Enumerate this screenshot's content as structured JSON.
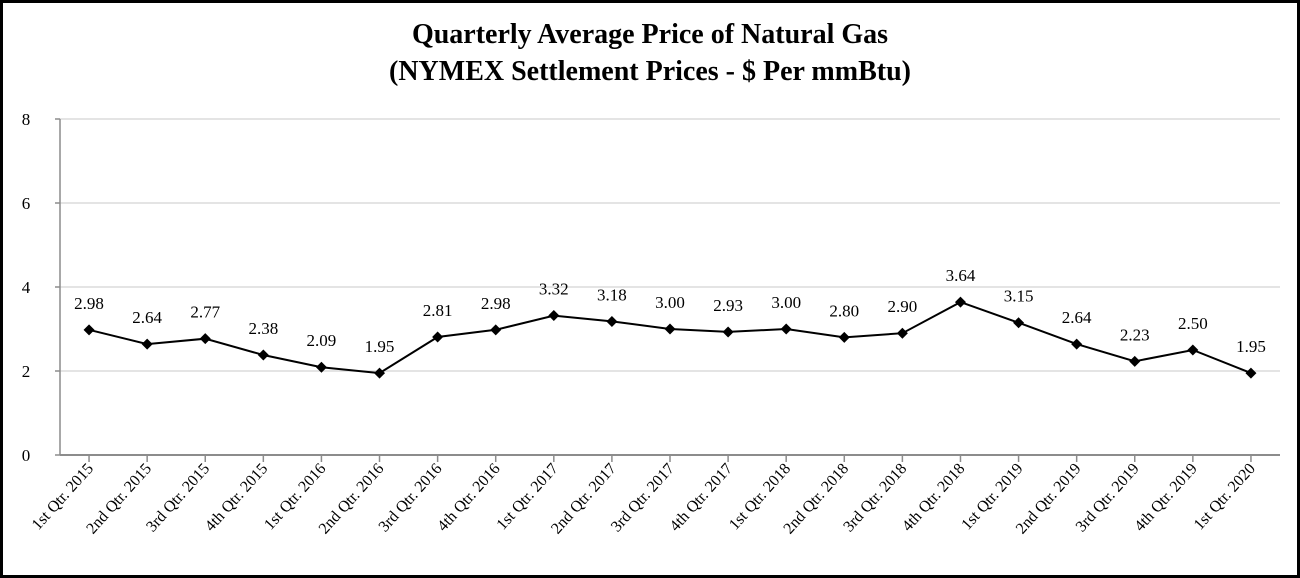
{
  "chart_data": {
    "type": "line",
    "title": [
      "Quarterly Average Price of Natural Gas",
      "(NYMEX Settlement Prices - $ Per mmBtu)"
    ],
    "xlabel": "",
    "ylabel": "",
    "categories": [
      "1st Qtr. 2015",
      "2nd Qtr. 2015",
      "3rd Qtr. 2015",
      "4th Qtr. 2015",
      "1st Qtr. 2016",
      "2nd Qtr. 2016",
      "3rd Qtr. 2016",
      "4th Qtr. 2016",
      "1st Qtr. 2017",
      "2nd Qtr. 2017",
      "3rd Qtr. 2017",
      "4th Qtr. 2017",
      "1st Qtr. 2018",
      "2nd Qtr. 2018",
      "3rd Qtr. 2018",
      "4th Qtr. 2018",
      "1st Qtr. 2019",
      "2nd Qtr. 2019",
      "3rd Qtr. 2019",
      "4th Qtr. 2019",
      "1st Qtr. 2020"
    ],
    "values": [
      2.98,
      2.64,
      2.77,
      2.38,
      2.09,
      1.95,
      2.81,
      2.98,
      3.32,
      3.18,
      3.0,
      2.93,
      3.0,
      2.8,
      2.9,
      3.64,
      3.15,
      2.64,
      2.23,
      2.5,
      1.95
    ],
    "ylim": [
      0,
      8
    ],
    "yticks": [
      0,
      2,
      4,
      6,
      8
    ],
    "grid": true,
    "legend": "none",
    "marker": "diamond"
  },
  "colors": {
    "line": "#000000",
    "marker": "#000000",
    "grid": "#dcdcdc",
    "axis": "#8c8c8c",
    "border": "#000000"
  }
}
